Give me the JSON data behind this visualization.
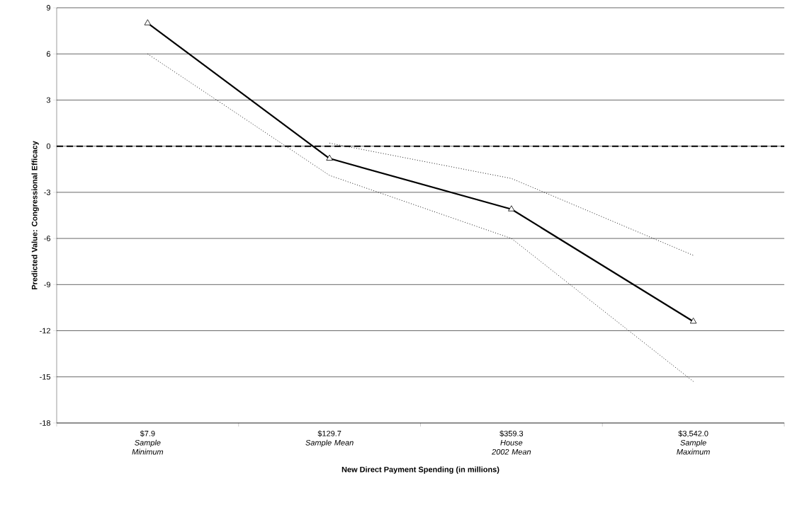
{
  "chart_data": {
    "type": "line",
    "xlabel": "New Direct Payment Spending (in millions)",
    "ylabel": "Predicted Value: Congressional Efficacy",
    "categories": [
      "$7.9\n*Sample Minimum*",
      "$129.7\n*Sample Mean*",
      "$359.3\n*House 2002 Mean*",
      "$3,542.0\n*Sample Maximum*"
    ],
    "series": [
      {
        "color": "#000000",
        "values": [
          null,
          0.2,
          -2.1,
          -7.1
        ],
        "line_style": "dotted",
        "marker": "none"
      },
      {
        "color": "#000000",
        "values": [
          6.0,
          -1.9,
          -6.0,
          -15.3
        ],
        "line_style": "dotted",
        "marker": "none"
      },
      {
        "color": "#000000",
        "values": [
          8.0,
          -0.8,
          -4.1,
          -11.4
        ],
        "line_style": "solid",
        "marker": "triangle"
      }
    ],
    "ylim": [
      -18,
      9
    ],
    "yticks": [
      -18,
      -15,
      -12,
      -9,
      -6,
      -3,
      0,
      3,
      6,
      9
    ],
    "grid": "y",
    "ref_lines": [
      {
        "axis": "y",
        "value": 0,
        "color": "#000000",
        "line_style": "dashed"
      }
    ]
  }
}
